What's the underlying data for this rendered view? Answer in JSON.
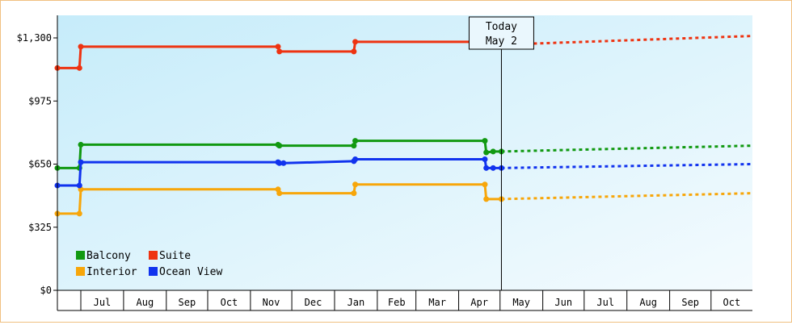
{
  "chart_data": {
    "type": "line",
    "title": "",
    "xlabel": "",
    "ylabel": "",
    "ylim": [
      0,
      1300
    ],
    "yticks": [
      0,
      325,
      650,
      975,
      1300
    ],
    "ytick_labels": [
      "$0",
      "$325",
      "$650",
      "$975",
      "$1,300"
    ],
    "x_month_labels": [
      "Jul",
      "Aug",
      "Sep",
      "Oct",
      "Nov",
      "Dec",
      "Jan",
      "Feb",
      "Mar",
      "Apr",
      "May",
      "Jun",
      "Jul",
      "Aug",
      "Sep",
      "Oct"
    ],
    "xlim": [
      "2024-06-14",
      "2025-10-31"
    ],
    "today": {
      "line1": "Today",
      "line2": "May 2",
      "date": "2025-05-02"
    },
    "grid": false,
    "legend_position": "bottom-left",
    "series": [
      {
        "name": "Balcony",
        "color": "#119911",
        "points": [
          [
            "2024-06-14",
            630
          ],
          [
            "2024-06-30",
            630
          ],
          [
            "2024-07-01",
            750
          ],
          [
            "2024-11-21",
            750
          ],
          [
            "2024-11-22",
            745
          ],
          [
            "2025-01-15",
            745
          ],
          [
            "2025-01-16",
            770
          ],
          [
            "2025-04-20",
            770
          ],
          [
            "2025-04-21",
            710
          ],
          [
            "2025-04-26",
            715
          ],
          [
            "2025-05-02",
            715
          ]
        ],
        "forecast": [
          [
            "2025-05-02",
            715
          ],
          [
            "2025-10-31",
            745
          ]
        ]
      },
      {
        "name": "Suite",
        "color": "#ee3311",
        "points": [
          [
            "2024-06-14",
            1145
          ],
          [
            "2024-06-30",
            1145
          ],
          [
            "2024-07-01",
            1255
          ],
          [
            "2024-11-21",
            1255
          ],
          [
            "2024-11-22",
            1230
          ],
          [
            "2025-01-15",
            1230
          ],
          [
            "2025-01-16",
            1280
          ],
          [
            "2025-04-20",
            1280
          ],
          [
            "2025-04-21",
            1265
          ],
          [
            "2025-05-02",
            1265
          ]
        ],
        "forecast": [
          [
            "2025-05-02",
            1265
          ],
          [
            "2025-10-31",
            1310
          ]
        ]
      },
      {
        "name": "Interior",
        "color": "#f7a60a",
        "points": [
          [
            "2024-06-14",
            395
          ],
          [
            "2024-06-30",
            395
          ],
          [
            "2024-07-01",
            520
          ],
          [
            "2024-11-21",
            520
          ],
          [
            "2024-11-22",
            500
          ],
          [
            "2025-01-15",
            500
          ],
          [
            "2025-01-16",
            545
          ],
          [
            "2025-04-20",
            545
          ],
          [
            "2025-04-21",
            470
          ],
          [
            "2025-05-02",
            470
          ]
        ],
        "forecast": [
          [
            "2025-05-02",
            470
          ],
          [
            "2025-10-31",
            500
          ]
        ]
      },
      {
        "name": "Ocean View",
        "color": "#1133ee",
        "points": [
          [
            "2024-06-14",
            540
          ],
          [
            "2024-06-30",
            540
          ],
          [
            "2024-07-01",
            660
          ],
          [
            "2024-11-21",
            660
          ],
          [
            "2024-11-22",
            655
          ],
          [
            "2024-11-25",
            655
          ],
          [
            "2025-01-15",
            665
          ],
          [
            "2025-01-16",
            675
          ],
          [
            "2025-04-20",
            675
          ],
          [
            "2025-04-21",
            630
          ],
          [
            "2025-04-26",
            630
          ],
          [
            "2025-05-02",
            630
          ]
        ],
        "forecast": [
          [
            "2025-05-02",
            630
          ],
          [
            "2025-10-31",
            650
          ]
        ]
      }
    ]
  }
}
